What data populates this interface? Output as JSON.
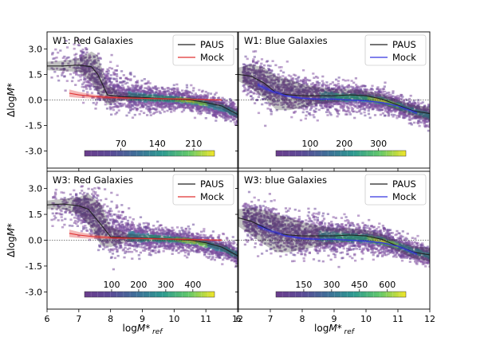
{
  "chart_data": [
    {
      "type": "scatter",
      "title": "W1: Red Galaxies",
      "row": 0,
      "col": 0,
      "xlim": [
        6,
        12
      ],
      "ylim": [
        -4,
        4
      ],
      "xticks": [],
      "yticks": [
        "3.0",
        "1.5",
        "0.0",
        "-1.5",
        "-3.0"
      ],
      "yticks_values": [
        3.0,
        1.5,
        0.0,
        -1.5,
        -3.0
      ],
      "ylabel": "ΔlogM*",
      "xlabel": "",
      "legend": [
        "PAUS",
        "Mock"
      ],
      "legend_loc": "top-right",
      "colorbar_ticks": [
        "70",
        "140",
        "210"
      ],
      "colorbar_range": [
        0,
        250
      ],
      "colorbar_tick_values": [
        70,
        140,
        210
      ],
      "density_center": [
        [
          7.0,
          2.0
        ],
        [
          7.5,
          1.4
        ],
        [
          8.0,
          0.6
        ],
        [
          8.5,
          0.3
        ],
        [
          9.0,
          0.2
        ],
        [
          9.5,
          0.15
        ],
        [
          10.0,
          0.1
        ],
        [
          10.5,
          0.0
        ],
        [
          11.0,
          -0.2
        ],
        [
          11.5,
          -0.45
        ],
        [
          12.0,
          -0.8
        ]
      ],
      "density_width": [
        0.9,
        1.2,
        1.1,
        0.8,
        0.7,
        0.6,
        0.5,
        0.5,
        0.5,
        0.5,
        0.5
      ],
      "series": [
        {
          "name": "PAUS",
          "color": "#222222",
          "x": [
            6.0,
            6.5,
            7.0,
            7.4,
            7.6,
            7.9,
            8.3,
            9.0,
            9.5,
            10.0,
            10.5,
            11.0,
            11.5,
            12.0
          ],
          "y": [
            2.0,
            2.0,
            2.05,
            1.95,
            1.5,
            0.3,
            0.2,
            0.15,
            0.1,
            0.05,
            0.0,
            -0.15,
            -0.35,
            -0.85
          ],
          "band": [
            0.25,
            0.3,
            0.4,
            0.9,
            1.1,
            0.6,
            0.25,
            0.2,
            0.18,
            0.15,
            0.15,
            0.15,
            0.2,
            0.25
          ]
        },
        {
          "name": "Mock",
          "color": "#e03030",
          "x": [
            6.7,
            7.0,
            7.5,
            8.0,
            8.5,
            9.0,
            9.5,
            10.0,
            10.5,
            11.0,
            11.5
          ],
          "y": [
            0.4,
            0.3,
            0.2,
            0.15,
            0.12,
            0.1,
            0.08,
            0.06,
            0.04,
            0.02,
            0.0
          ],
          "band": [
            0.22,
            0.18,
            0.12,
            0.08,
            0.06,
            0.05,
            0.05,
            0.05,
            0.05,
            0.05,
            0.06
          ]
        }
      ]
    },
    {
      "type": "scatter",
      "title": "W1: Blue Galaxies",
      "row": 0,
      "col": 1,
      "xlim": [
        6,
        12
      ],
      "ylim": [
        -4,
        4
      ],
      "xticks": [],
      "yticks": [],
      "ylabel": "",
      "xlabel": "",
      "legend": [
        "PAUS",
        "Mock"
      ],
      "legend_loc": "top-right",
      "colorbar_ticks": [
        "100",
        "200",
        "300"
      ],
      "colorbar_range": [
        0,
        380
      ],
      "colorbar_tick_values": [
        100,
        200,
        300
      ],
      "density_center": [
        [
          6.0,
          1.4
        ],
        [
          6.5,
          1.2
        ],
        [
          7.0,
          0.8
        ],
        [
          7.5,
          0.5
        ],
        [
          8.0,
          0.35
        ],
        [
          9.0,
          0.25
        ],
        [
          10.0,
          0.15
        ],
        [
          10.5,
          0.0
        ],
        [
          11.0,
          -0.3
        ],
        [
          11.5,
          -0.6
        ],
        [
          12.0,
          -0.9
        ]
      ],
      "density_width": [
        0.8,
        1.0,
        1.0,
        0.9,
        0.8,
        0.7,
        0.6,
        0.55,
        0.5,
        0.5,
        0.5
      ],
      "series": [
        {
          "name": "PAUS",
          "color": "#222222",
          "x": [
            6.0,
            6.4,
            6.8,
            7.2,
            7.6,
            8.0,
            8.5,
            9.0,
            9.5,
            10.0,
            10.5,
            11.0,
            11.5,
            12.0
          ],
          "y": [
            1.5,
            1.4,
            1.0,
            0.4,
            0.3,
            0.25,
            0.25,
            0.25,
            0.3,
            0.25,
            0.05,
            -0.3,
            -0.65,
            -0.8
          ],
          "band": [
            0.4,
            0.7,
            0.9,
            1.0,
            0.9,
            0.7,
            0.5,
            0.4,
            0.35,
            0.3,
            0.3,
            0.3,
            0.35,
            0.4
          ]
        },
        {
          "name": "Mock",
          "color": "#3535e0",
          "x": [
            6.6,
            7.0,
            7.5,
            8.0,
            8.5,
            9.0,
            9.5,
            10.0,
            10.5,
            11.0,
            11.6
          ],
          "y": [
            0.9,
            0.55,
            0.25,
            0.1,
            0.05,
            0.05,
            0.0,
            -0.05,
            -0.15,
            -0.35,
            -0.75
          ],
          "band": [
            0.15,
            0.12,
            0.08,
            0.06,
            0.05,
            0.05,
            0.05,
            0.05,
            0.05,
            0.06,
            0.1
          ]
        }
      ]
    },
    {
      "type": "scatter",
      "title": "W3: Red Galaxies",
      "row": 1,
      "col": 0,
      "xlim": [
        6,
        12
      ],
      "ylim": [
        -4,
        4
      ],
      "xticks": [
        "6",
        "7",
        "8",
        "9",
        "10",
        "11",
        "12"
      ],
      "xticks_values": [
        6,
        7,
        8,
        9,
        10,
        11,
        12
      ],
      "yticks": [
        "3.0",
        "1.5",
        "0.0",
        "-1.5",
        "-3.0"
      ],
      "yticks_values": [
        3.0,
        1.5,
        0.0,
        -1.5,
        -3.0
      ],
      "ylabel": "ΔlogM*",
      "xlabel": "logM*ref",
      "legend": [
        "PAUS",
        "Mock"
      ],
      "legend_loc": "top-right",
      "colorbar_ticks": [
        "100",
        "200",
        "300",
        "400"
      ],
      "colorbar_range": [
        0,
        480
      ],
      "colorbar_tick_values": [
        100,
        200,
        300,
        400
      ],
      "density_center": [
        [
          7.0,
          1.9
        ],
        [
          7.5,
          1.3
        ],
        [
          8.0,
          0.6
        ],
        [
          8.5,
          0.3
        ],
        [
          9.0,
          0.2
        ],
        [
          9.5,
          0.15
        ],
        [
          10.0,
          0.1
        ],
        [
          10.5,
          0.0
        ],
        [
          11.0,
          -0.2
        ],
        [
          11.5,
          -0.45
        ],
        [
          12.0,
          -0.85
        ]
      ],
      "density_width": [
        0.9,
        1.2,
        1.2,
        0.8,
        0.7,
        0.6,
        0.5,
        0.5,
        0.5,
        0.5,
        0.5
      ],
      "series": [
        {
          "name": "PAUS",
          "color": "#222222",
          "x": [
            6.0,
            6.5,
            7.0,
            7.3,
            7.7,
            8.0,
            8.5,
            9.0,
            9.5,
            10.0,
            10.5,
            11.0,
            11.5,
            12.0
          ],
          "y": [
            2.05,
            2.1,
            2.0,
            1.8,
            0.9,
            0.2,
            0.15,
            0.12,
            0.1,
            0.05,
            0.0,
            -0.15,
            -0.4,
            -0.9
          ],
          "band": [
            0.25,
            0.3,
            0.5,
            0.9,
            1.2,
            0.6,
            0.25,
            0.2,
            0.18,
            0.15,
            0.15,
            0.15,
            0.2,
            0.25
          ]
        },
        {
          "name": "Mock",
          "color": "#e03030",
          "x": [
            6.7,
            7.0,
            7.5,
            8.0,
            8.5,
            9.0,
            9.5,
            10.0,
            10.5,
            11.0,
            11.5
          ],
          "y": [
            0.4,
            0.3,
            0.2,
            0.15,
            0.12,
            0.1,
            0.08,
            0.06,
            0.04,
            0.02,
            0.0
          ],
          "band": [
            0.22,
            0.18,
            0.12,
            0.08,
            0.06,
            0.05,
            0.05,
            0.05,
            0.05,
            0.05,
            0.06
          ]
        }
      ]
    },
    {
      "type": "scatter",
      "title": "W3: blue Galaxies",
      "row": 1,
      "col": 1,
      "xlim": [
        6,
        12
      ],
      "ylim": [
        -4,
        4
      ],
      "xticks": [
        "6",
        "7",
        "8",
        "9",
        "10",
        "11",
        "12"
      ],
      "xticks_values": [
        6,
        7,
        8,
        9,
        10,
        11,
        12
      ],
      "yticks": [],
      "ylabel": "",
      "xlabel": "logM*ref",
      "legend": [
        "PAUS",
        "Mock"
      ],
      "legend_loc": "top-right",
      "colorbar_ticks": [
        "150",
        "300",
        "450",
        "600"
      ],
      "colorbar_range": [
        0,
        700
      ],
      "colorbar_tick_values": [
        150,
        300,
        450,
        600
      ],
      "density_center": [
        [
          6.0,
          1.3
        ],
        [
          6.5,
          1.1
        ],
        [
          7.0,
          0.8
        ],
        [
          7.5,
          0.5
        ],
        [
          8.0,
          0.35
        ],
        [
          9.0,
          0.25
        ],
        [
          10.0,
          0.15
        ],
        [
          10.5,
          0.0
        ],
        [
          11.0,
          -0.3
        ],
        [
          11.5,
          -0.6
        ],
        [
          12.0,
          -0.9
        ]
      ],
      "density_width": [
        0.8,
        1.0,
        1.0,
        1.0,
        0.9,
        0.8,
        0.7,
        0.6,
        0.55,
        0.5,
        0.5
      ],
      "series": [
        {
          "name": "PAUS",
          "color": "#222222",
          "x": [
            6.0,
            6.4,
            6.8,
            7.2,
            7.6,
            8.0,
            8.5,
            9.0,
            9.5,
            10.0,
            10.5,
            11.0,
            11.5,
            12.0
          ],
          "y": [
            1.3,
            1.1,
            0.75,
            0.4,
            0.3,
            0.25,
            0.25,
            0.25,
            0.3,
            0.25,
            0.05,
            -0.35,
            -0.7,
            -0.85
          ],
          "band": [
            0.5,
            0.8,
            1.0,
            1.1,
            1.0,
            0.8,
            0.6,
            0.45,
            0.4,
            0.35,
            0.3,
            0.3,
            0.35,
            0.4
          ]
        },
        {
          "name": "Mock",
          "color": "#3535e0",
          "x": [
            6.6,
            7.0,
            7.5,
            8.0,
            8.5,
            9.0,
            9.5,
            10.0,
            10.5,
            11.0,
            11.6
          ],
          "y": [
            0.85,
            0.55,
            0.25,
            0.1,
            0.05,
            0.05,
            0.0,
            -0.05,
            -0.15,
            -0.35,
            -0.8
          ],
          "band": [
            0.15,
            0.12,
            0.08,
            0.06,
            0.05,
            0.05,
            0.05,
            0.05,
            0.05,
            0.06,
            0.1
          ]
        }
      ]
    }
  ]
}
